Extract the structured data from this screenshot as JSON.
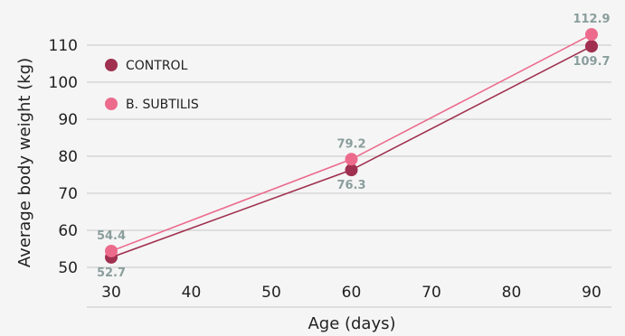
{
  "chart_data": {
    "type": "line",
    "xlabel": "Age (days)",
    "ylabel": "Average body weight (kg)",
    "xlim": [
      30,
      90
    ],
    "ylim": [
      50,
      110
    ],
    "x_ticks": [
      30,
      40,
      50,
      60,
      70,
      80,
      90
    ],
    "y_ticks": [
      50,
      60,
      70,
      80,
      90,
      100,
      110
    ],
    "grid": "horizontal",
    "legend_position": "top-left",
    "data_label_color": "#8a9e9c",
    "series": [
      {
        "name": "CONTROL",
        "color": "#a0304f",
        "x": [
          30,
          60,
          90
        ],
        "y": [
          52.7,
          76.3,
          109.7
        ],
        "labels": [
          "52.7",
          "76.3",
          "109.7"
        ],
        "label_side": "below"
      },
      {
        "name": "B. SUBTILIS",
        "color": "#ec6b8d",
        "x": [
          30,
          60,
          90
        ],
        "y": [
          54.4,
          79.2,
          112.9
        ],
        "labels": [
          "54.4",
          "79.2",
          "112.9"
        ],
        "label_side": "above"
      }
    ]
  }
}
